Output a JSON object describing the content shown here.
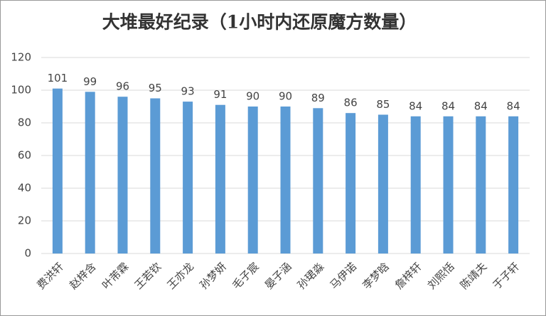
{
  "chart_data": {
    "type": "bar",
    "title": "大堆最好纪录（1小时内还原魔方数量）",
    "categories": [
      "费洪轩",
      "赵梓含",
      "叶芾霖",
      "王若钦",
      "王亦龙",
      "孙梦妍",
      "毛子宸",
      "晏子涵",
      "孙珺淼",
      "马伊诺",
      "李梦晗",
      "詹梓轩",
      "刘熙恬",
      "陈靖夫",
      "于子轩"
    ],
    "values": [
      101,
      99,
      96,
      95,
      93,
      91,
      90,
      90,
      89,
      86,
      85,
      84,
      84,
      84,
      84
    ],
    "color": "#5b9bd5",
    "ylim": [
      0,
      120
    ],
    "yticks": [
      0,
      20,
      40,
      60,
      80,
      100,
      120
    ],
    "grid": true
  }
}
